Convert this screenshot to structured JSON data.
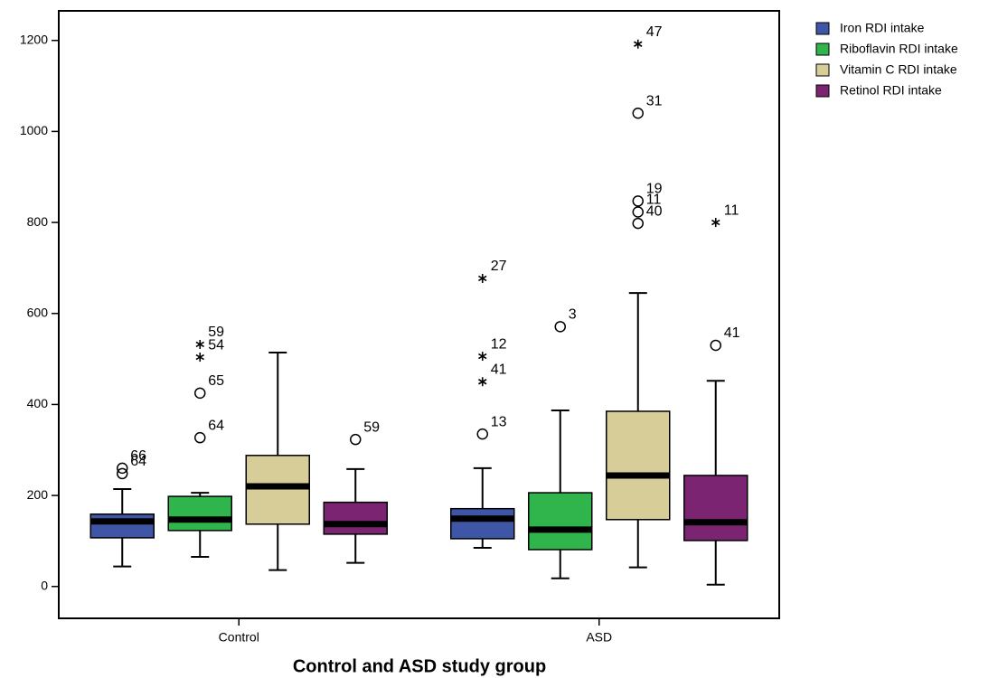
{
  "chart_data": {
    "type": "box",
    "xlabel": "Control and ASD study group",
    "categories": [
      "Control",
      "ASD"
    ],
    "ylim": [
      -70,
      1265
    ],
    "yticks": [
      0,
      200,
      400,
      600,
      800,
      1000,
      1200
    ],
    "legend": "right",
    "series": [
      {
        "name": "Iron RDI intake",
        "color": "#3f55a6",
        "boxes": [
          {
            "whisker_low": 44,
            "q1": 107,
            "median": 143,
            "q3": 159,
            "whisker_high": 214,
            "outliers": [
              {
                "value": 260,
                "label": "66",
                "marker": "circle"
              },
              {
                "value": 248,
                "label": "64",
                "marker": "circle"
              }
            ]
          },
          {
            "whisker_low": 85,
            "q1": 105,
            "median": 149,
            "q3": 171,
            "whisker_high": 260,
            "outliers": [
              {
                "value": 335,
                "label": "13",
                "marker": "circle"
              },
              {
                "value": 450,
                "label": "41",
                "marker": "star"
              },
              {
                "value": 506,
                "label": "12",
                "marker": "star"
              },
              {
                "value": 677,
                "label": "27",
                "marker": "star"
              }
            ]
          }
        ]
      },
      {
        "name": "Riboflavin RDI intake",
        "color": "#2fb54b",
        "boxes": [
          {
            "whisker_low": 65,
            "q1": 123,
            "median": 147,
            "q3": 198,
            "whisker_high": 206,
            "outliers": [
              {
                "value": 327,
                "label": "64",
                "marker": "circle"
              },
              {
                "value": 425,
                "label": "65",
                "marker": "circle"
              },
              {
                "value": 504,
                "label": "54",
                "marker": "star"
              },
              {
                "value": 532,
                "label": "59",
                "marker": "star"
              }
            ]
          },
          {
            "whisker_low": 18,
            "q1": 81,
            "median": 125,
            "q3": 206,
            "whisker_high": 387,
            "outliers": [
              {
                "value": 571,
                "label": "3",
                "marker": "circle"
              }
            ]
          }
        ]
      },
      {
        "name": "Vitamin C RDI intake",
        "color": "#d6cd98",
        "boxes": [
          {
            "whisker_low": 36,
            "q1": 137,
            "median": 220,
            "q3": 288,
            "whisker_high": 514,
            "outliers": []
          },
          {
            "whisker_low": 42,
            "q1": 147,
            "median": 244,
            "q3": 385,
            "whisker_high": 645,
            "outliers": [
              {
                "value": 798,
                "label": "40",
                "marker": "circle"
              },
              {
                "value": 823,
                "label": "11",
                "marker": "circle"
              },
              {
                "value": 847,
                "label": "19",
                "marker": "circle"
              },
              {
                "value": 1040,
                "label": "31",
                "marker": "circle"
              },
              {
                "value": 1192,
                "label": "47",
                "marker": "star"
              }
            ]
          }
        ]
      },
      {
        "name": "Retinol RDI intake",
        "color": "#7b2572",
        "boxes": [
          {
            "whisker_low": 52,
            "q1": 115,
            "median": 137,
            "q3": 185,
            "whisker_high": 258,
            "outliers": [
              {
                "value": 323,
                "label": "59",
                "marker": "circle"
              }
            ]
          },
          {
            "whisker_low": 4,
            "q1": 101,
            "median": 141,
            "q3": 244,
            "whisker_high": 452,
            "outliers": [
              {
                "value": 530,
                "label": "41",
                "marker": "circle"
              },
              {
                "value": 800,
                "label": "11",
                "marker": "star"
              }
            ]
          }
        ]
      }
    ]
  }
}
